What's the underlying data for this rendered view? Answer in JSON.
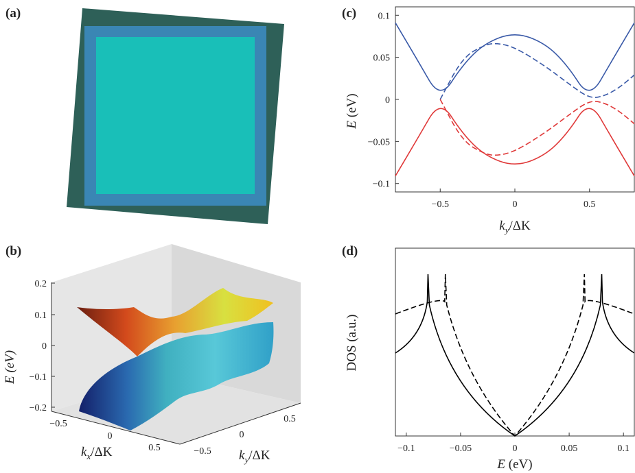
{
  "panels": {
    "a": {
      "label": "(a)"
    },
    "b": {
      "label": "(b)",
      "z_label": "E (eV)",
      "z_ticks": [
        "0.2",
        "0.1",
        "0",
        "−0.1",
        "−0.2"
      ],
      "kx_ticks": [
        "−0.5",
        "0",
        "0.5"
      ],
      "ky_ticks": [
        "−0.5",
        "0",
        "0.5"
      ],
      "kx_label": "k",
      "kx_sub": "x",
      "kx_rest": "/ΔK",
      "ky_label": "k",
      "ky_sub": "y",
      "ky_rest": "/ΔK"
    },
    "c": {
      "label": "(c)",
      "ylabel_italic": "E",
      "ylabel_rest": " (eV)",
      "xlabel": "k",
      "xlabel_sub": "y",
      "xlabel_rest": "/ΔK",
      "x_ticks": [
        "−0.5",
        "0",
        "0.5"
      ],
      "y_ticks": [
        "0.1",
        "0.05",
        "0",
        "−0.05",
        "−0.1"
      ]
    },
    "d": {
      "label": "(d)",
      "ylabel": "DOS (a.u.)",
      "xlabel_italic": "E",
      "xlabel_rest": " (eV)",
      "x_ticks": [
        "−0.1",
        "−0.05",
        "0",
        "0.05",
        "0.1"
      ]
    }
  },
  "colors": {
    "upper_band": "#3a5aa8",
    "lower_band": "#e03a3a",
    "dos_line": "#000000",
    "outer_layer": "#2e6058",
    "middle_layer": "#3a86b4",
    "inner_layer": "#19bfb8"
  },
  "chart_data": [
    {
      "panel": "c",
      "type": "line",
      "x_range": [
        -0.8,
        0.8
      ],
      "y_range": [
        -0.11,
        0.11
      ],
      "series": [
        {
          "band": "upper",
          "style": "solid",
          "color": "#3a5aa8",
          "x": [
            -0.8,
            -0.65,
            -0.5,
            -0.35,
            -0.2,
            0,
            0.2,
            0.35,
            0.5,
            0.65,
            0.8
          ],
          "y": [
            0.091,
            0.046,
            0.0,
            0.041,
            0.067,
            0.08,
            0.067,
            0.041,
            0.0,
            0.046,
            0.091
          ]
        },
        {
          "band": "lower",
          "style": "solid",
          "color": "#e03a3a",
          "x": [
            -0.8,
            -0.65,
            -0.5,
            -0.35,
            -0.2,
            0,
            0.2,
            0.35,
            0.5,
            0.65,
            0.8
          ],
          "y": [
            -0.091,
            -0.046,
            0.0,
            -0.041,
            -0.067,
            -0.08,
            -0.067,
            -0.041,
            0.0,
            -0.046,
            -0.091
          ]
        },
        {
          "band": "upper",
          "style": "dashed",
          "color": "#3a5aa8",
          "x": [
            -0.5,
            -0.35,
            -0.2,
            -0.12,
            0,
            0.2,
            0.35,
            0.5,
            0.6,
            0.7,
            0.8
          ],
          "y": [
            0.0,
            0.05,
            0.065,
            0.067,
            0.062,
            0.04,
            0.02,
            0.001,
            0.004,
            0.014,
            0.029
          ]
        },
        {
          "band": "lower",
          "style": "dashed",
          "color": "#e03a3a",
          "x": [
            -0.5,
            -0.35,
            -0.2,
            -0.12,
            0,
            0.2,
            0.35,
            0.5,
            0.6,
            0.7,
            0.8
          ],
          "y": [
            0.0,
            -0.05,
            -0.065,
            -0.067,
            -0.062,
            -0.04,
            -0.02,
            -0.001,
            -0.004,
            -0.014,
            -0.029
          ]
        }
      ]
    },
    {
      "panel": "d",
      "type": "line",
      "x_range": [
        -0.11,
        0.11
      ],
      "series": [
        {
          "style": "solid",
          "peaks_at": [
            -0.08,
            0.08
          ],
          "minimum_at": 0
        },
        {
          "style": "dashed",
          "peaks_at": [
            -0.064,
            0.064
          ],
          "minimum_at": 0
        }
      ]
    }
  ]
}
